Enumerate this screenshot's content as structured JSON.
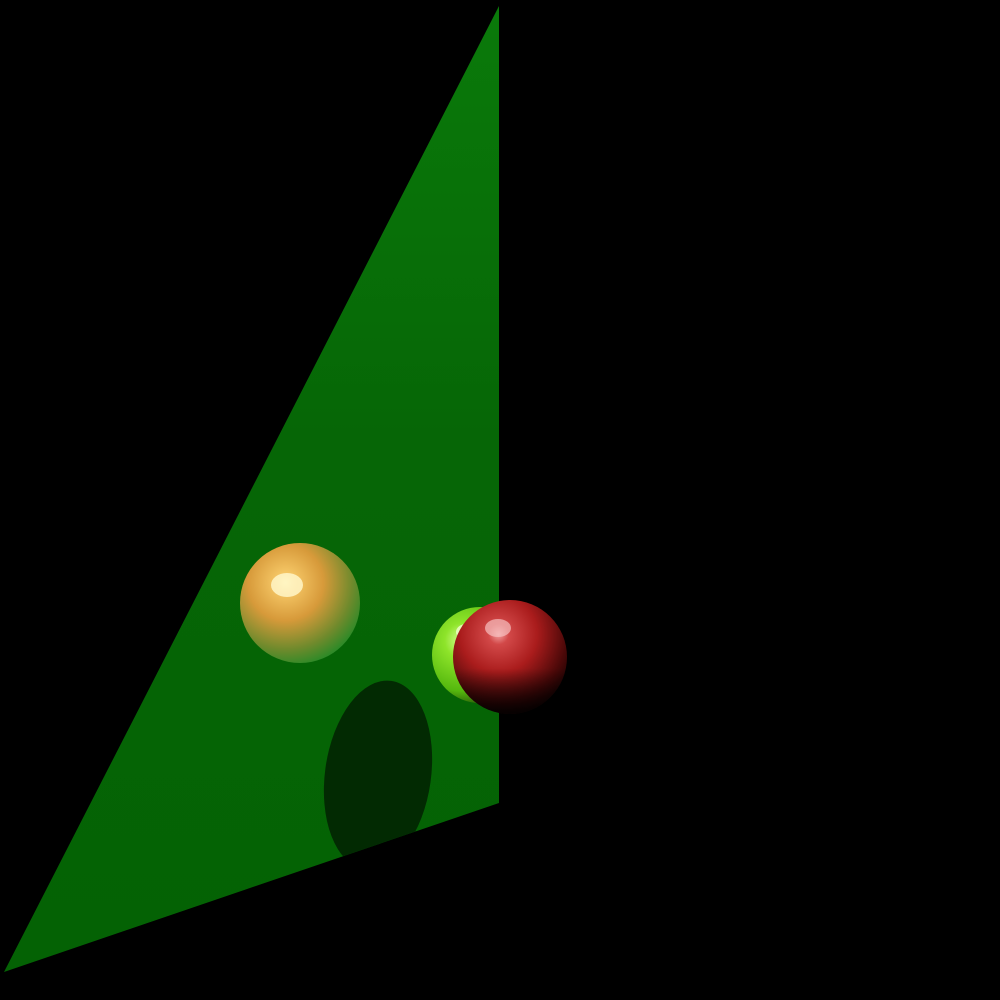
{
  "scene": {
    "background_color": "#000000",
    "objects": [
      {
        "kind": "triangle-plane",
        "name": "green-plane",
        "color": "#0a7a0a"
      },
      {
        "kind": "shadow",
        "name": "sphere-shadow",
        "color": "#022a02"
      },
      {
        "kind": "sphere",
        "name": "gold-sphere",
        "color": "#d89a3a",
        "material": "translucent"
      },
      {
        "kind": "sphere",
        "name": "lime-green-sphere",
        "color": "#7ad61a",
        "material": "glossy"
      },
      {
        "kind": "sphere",
        "name": "red-sphere",
        "color": "#b01818",
        "material": "glossy"
      }
    ]
  }
}
